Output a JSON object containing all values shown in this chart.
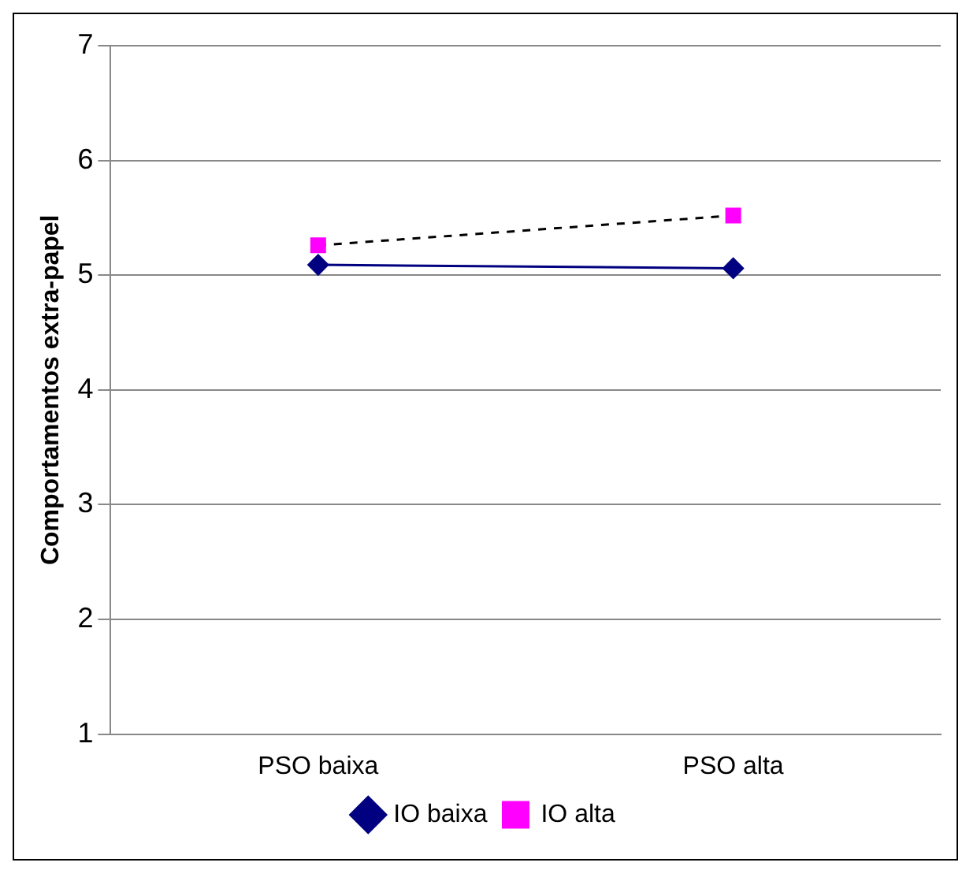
{
  "chart_data": {
    "type": "line",
    "ylabel": "Comportamentos extra-papel",
    "categories": [
      "PSO baixa",
      "PSO alta"
    ],
    "series": [
      {
        "name": "IO baixa",
        "color": "#000080",
        "values": [
          5.09,
          5.06
        ],
        "marker": "diamond",
        "line_style": "solid"
      },
      {
        "name": "IO alta",
        "color": "#ff00ff",
        "values": [
          5.26,
          5.52
        ],
        "marker": "square",
        "line_style": "dashed"
      }
    ],
    "ylim": [
      1,
      7
    ],
    "yticks": [
      1,
      2,
      3,
      4,
      5,
      6,
      7
    ],
    "grid": "y",
    "legend": "bottom"
  }
}
